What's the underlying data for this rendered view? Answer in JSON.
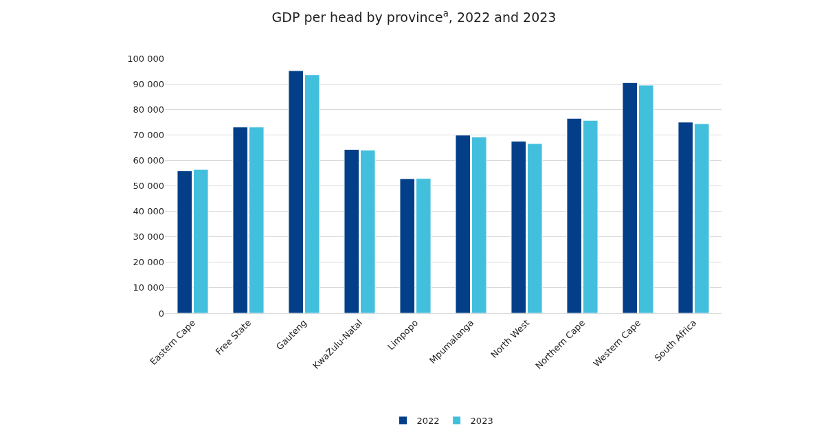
{
  "chart_data": {
    "type": "bar",
    "title": "GDP per head by province$^{a}$, 2022 and 2023",
    "categories": [
      "Eastern Cape",
      "Free State",
      "Gauteng",
      "KwaZulu-Natal",
      "Limpopo",
      "Mpumalanga",
      "North West",
      "Northern Cape",
      "Western Cape",
      "South Africa"
    ],
    "series": [
      {
        "name": "2022",
        "color": "#023f88",
        "values": [
          55900,
          73100,
          95200,
          64300,
          52800,
          69900,
          67500,
          76500,
          90500,
          75000
        ]
      },
      {
        "name": "2023",
        "color": "#42bfdd",
        "values": [
          56500,
          73100,
          93600,
          64000,
          52900,
          69200,
          66600,
          75700,
          89500,
          74400
        ]
      }
    ],
    "ylim": [
      0,
      100000
    ],
    "yticks": [
      {
        "value": 0,
        "label": "0"
      },
      {
        "value": 10000,
        "label": "10 000"
      },
      {
        "value": 20000,
        "label": "20 000"
      },
      {
        "value": 30000,
        "label": "30 000"
      },
      {
        "value": 40000,
        "label": "40 000"
      },
      {
        "value": 50000,
        "label": "50 000"
      },
      {
        "value": 60000,
        "label": "60 000"
      },
      {
        "value": 70000,
        "label": "70 000"
      },
      {
        "value": 80000,
        "label": "80 000"
      },
      {
        "value": 90000,
        "label": "90 000"
      },
      {
        "value": 100000,
        "label": "100 000"
      }
    ],
    "grid": "y",
    "legend": "bottom"
  }
}
